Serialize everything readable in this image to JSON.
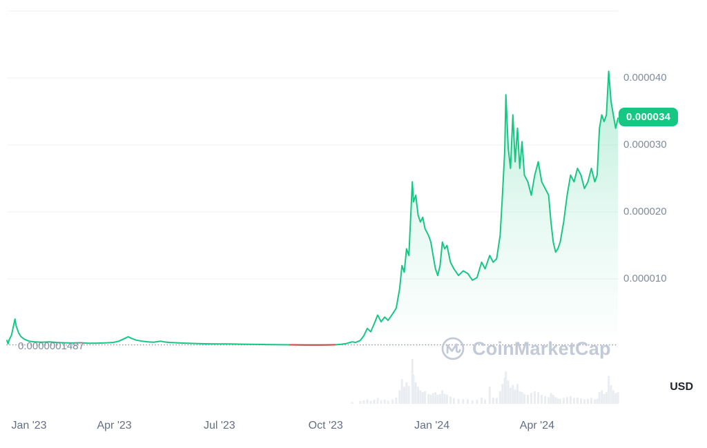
{
  "watermark": {
    "text": "CoinMarketCap"
  },
  "chart_data": {
    "type": "area",
    "title": "",
    "unit": "USD",
    "legend": "none",
    "grid": "horizontal",
    "current_price_label": "0.000034",
    "current_price_value": 3.4e-05,
    "baseline": {
      "value": 1.487e-07,
      "label": "0.0000001487"
    },
    "x_domain": [
      "2022-12-29",
      "2024-06-10"
    ],
    "y_domain": [
      0,
      5e-05
    ],
    "gridline_values": [
      5e-05,
      4e-05,
      3e-05,
      2e-05,
      1e-05
    ],
    "y_ticks": [
      {
        "value": 4e-05,
        "label": "0.000040"
      },
      {
        "value": 3e-05,
        "label": "0.000030"
      },
      {
        "value": 2e-05,
        "label": "0.000020"
      },
      {
        "value": 1e-05,
        "label": "0.000010"
      }
    ],
    "x_ticks": [
      {
        "date": "2023-01-01",
        "label": "Jan '23"
      },
      {
        "date": "2023-04-01",
        "label": "Apr '23"
      },
      {
        "date": "2023-07-01",
        "label": "Jul '23"
      },
      {
        "date": "2023-10-01",
        "label": "Oct '23"
      },
      {
        "date": "2024-01-01",
        "label": "Jan '24"
      },
      {
        "date": "2024-04-01",
        "label": "Apr '24"
      }
    ],
    "series": [
      {
        "name": "price",
        "points": [
          [
            "2022-12-29",
            8e-07
          ],
          [
            "2022-12-30",
            3e-07
          ],
          [
            "2022-12-31",
            9e-07
          ],
          [
            "2023-01-02",
            1.6e-06
          ],
          [
            "2023-01-04",
            3.2e-06
          ],
          [
            "2023-01-05",
            4e-06
          ],
          [
            "2023-01-06",
            3e-06
          ],
          [
            "2023-01-08",
            2e-06
          ],
          [
            "2023-01-10",
            1.4e-06
          ],
          [
            "2023-01-13",
            1e-06
          ],
          [
            "2023-01-17",
            7e-07
          ],
          [
            "2023-01-22",
            6e-07
          ],
          [
            "2023-01-28",
            5.5e-07
          ],
          [
            "2023-02-04",
            6e-07
          ],
          [
            "2023-02-10",
            5e-07
          ],
          [
            "2023-02-17",
            4.5e-07
          ],
          [
            "2023-02-24",
            4.2e-07
          ],
          [
            "2023-03-03",
            4.6e-07
          ],
          [
            "2023-03-10",
            3.8e-07
          ],
          [
            "2023-03-17",
            4e-07
          ],
          [
            "2023-03-24",
            4.4e-07
          ],
          [
            "2023-03-31",
            5e-07
          ],
          [
            "2023-04-05",
            7e-07
          ],
          [
            "2023-04-10",
            1.1e-06
          ],
          [
            "2023-04-13",
            1.35e-06
          ],
          [
            "2023-04-16",
            1.1e-06
          ],
          [
            "2023-04-20",
            8.5e-07
          ],
          [
            "2023-04-25",
            7e-07
          ],
          [
            "2023-04-30",
            6e-07
          ],
          [
            "2023-05-05",
            5.5e-07
          ],
          [
            "2023-05-11",
            7e-07
          ],
          [
            "2023-05-14",
            6e-07
          ],
          [
            "2023-05-19",
            5e-07
          ],
          [
            "2023-05-25",
            4.5e-07
          ],
          [
            "2023-06-01",
            4e-07
          ],
          [
            "2023-06-08",
            3.6e-07
          ],
          [
            "2023-06-15",
            3.2e-07
          ],
          [
            "2023-06-22",
            3e-07
          ],
          [
            "2023-06-29",
            2.9e-07
          ],
          [
            "2023-07-06",
            2.8e-07
          ],
          [
            "2023-07-13",
            2.7e-07
          ],
          [
            "2023-07-20",
            2.5e-07
          ],
          [
            "2023-07-27",
            2.4e-07
          ],
          [
            "2023-08-03",
            2.2e-07
          ],
          [
            "2023-08-10",
            2e-07
          ],
          [
            "2023-08-17",
            1.8e-07
          ],
          [
            "2023-08-24",
            1.7e-07
          ],
          [
            "2023-08-31",
            1.55e-07
          ],
          [
            "2023-09-07",
            1.4e-07
          ],
          [
            "2023-09-14",
            1.3e-07
          ],
          [
            "2023-09-21",
            1.25e-07
          ],
          [
            "2023-09-28",
            1.35e-07
          ],
          [
            "2023-10-04",
            1.45e-07
          ],
          [
            "2023-10-09",
            1.7e-07
          ],
          [
            "2023-10-14",
            2.2e-07
          ],
          [
            "2023-10-19",
            3.5e-07
          ],
          [
            "2023-10-24",
            6e-07
          ],
          [
            "2023-10-27",
            5e-07
          ],
          [
            "2023-10-31",
            8e-07
          ],
          [
            "2023-11-03",
            1.5e-06
          ],
          [
            "2023-11-06",
            2.6e-06
          ],
          [
            "2023-11-09",
            2.1e-06
          ],
          [
            "2023-11-12",
            3.3e-06
          ],
          [
            "2023-11-15",
            4.6e-06
          ],
          [
            "2023-11-18",
            3.6e-06
          ],
          [
            "2023-11-21",
            4.3e-06
          ],
          [
            "2023-11-24",
            3.8e-06
          ],
          [
            "2023-11-28",
            4.8e-06
          ],
          [
            "2023-12-01",
            5.6e-06
          ],
          [
            "2023-12-04",
            8.5e-06
          ],
          [
            "2023-12-06",
            1.2e-05
          ],
          [
            "2023-12-08",
            1.1e-05
          ],
          [
            "2023-12-10",
            1.45e-05
          ],
          [
            "2023-12-12",
            1.35e-05
          ],
          [
            "2023-12-15",
            2.45e-05
          ],
          [
            "2023-12-16",
            2.15e-05
          ],
          [
            "2023-12-18",
            2.25e-05
          ],
          [
            "2023-12-20",
            1.95e-05
          ],
          [
            "2023-12-22",
            1.85e-05
          ],
          [
            "2023-12-24",
            1.92e-05
          ],
          [
            "2023-12-26",
            1.75e-05
          ],
          [
            "2023-12-29",
            1.65e-05
          ],
          [
            "2023-12-31",
            1.55e-05
          ],
          [
            "2024-01-02",
            1.35e-05
          ],
          [
            "2024-01-04",
            1.15e-05
          ],
          [
            "2024-01-06",
            1.05e-05
          ],
          [
            "2024-01-08",
            1.2e-05
          ],
          [
            "2024-01-10",
            1.55e-05
          ],
          [
            "2024-01-12",
            1.45e-05
          ],
          [
            "2024-01-14",
            1.5e-05
          ],
          [
            "2024-01-17",
            1.25e-05
          ],
          [
            "2024-01-20",
            1.15e-05
          ],
          [
            "2024-01-24",
            1.05e-05
          ],
          [
            "2024-01-28",
            1.12e-05
          ],
          [
            "2024-02-01",
            1.08e-05
          ],
          [
            "2024-02-05",
            9.8e-06
          ],
          [
            "2024-02-09",
            1.02e-05
          ],
          [
            "2024-02-13",
            1.25e-05
          ],
          [
            "2024-02-16",
            1.15e-05
          ],
          [
            "2024-02-20",
            1.35e-05
          ],
          [
            "2024-02-23",
            1.25e-05
          ],
          [
            "2024-02-26",
            1.3e-05
          ],
          [
            "2024-02-29",
            1.65e-05
          ],
          [
            "2024-03-02",
            2.25e-05
          ],
          [
            "2024-03-04",
            2.9e-05
          ],
          [
            "2024-03-05",
            3.75e-05
          ],
          [
            "2024-03-07",
            2.95e-05
          ],
          [
            "2024-03-09",
            2.65e-05
          ],
          [
            "2024-03-11",
            3.45e-05
          ],
          [
            "2024-03-13",
            2.75e-05
          ],
          [
            "2024-03-15",
            3.25e-05
          ],
          [
            "2024-03-17",
            2.65e-05
          ],
          [
            "2024-03-19",
            3.05e-05
          ],
          [
            "2024-03-21",
            2.55e-05
          ],
          [
            "2024-03-24",
            2.45e-05
          ],
          [
            "2024-03-27",
            2.25e-05
          ],
          [
            "2024-03-30",
            2.55e-05
          ],
          [
            "2024-04-02",
            2.75e-05
          ],
          [
            "2024-04-05",
            2.45e-05
          ],
          [
            "2024-04-08",
            2.35e-05
          ],
          [
            "2024-04-11",
            2.25e-05
          ],
          [
            "2024-04-13",
            1.85e-05
          ],
          [
            "2024-04-15",
            1.55e-05
          ],
          [
            "2024-04-17",
            1.4e-05
          ],
          [
            "2024-04-19",
            1.45e-05
          ],
          [
            "2024-04-21",
            1.55e-05
          ],
          [
            "2024-04-24",
            1.85e-05
          ],
          [
            "2024-04-27",
            2.25e-05
          ],
          [
            "2024-04-30",
            2.55e-05
          ],
          [
            "2024-05-03",
            2.45e-05
          ],
          [
            "2024-05-06",
            2.65e-05
          ],
          [
            "2024-05-09",
            2.55e-05
          ],
          [
            "2024-05-12",
            2.35e-05
          ],
          [
            "2024-05-15",
            2.45e-05
          ],
          [
            "2024-05-18",
            2.65e-05
          ],
          [
            "2024-05-21",
            2.45e-05
          ],
          [
            "2024-05-23",
            2.55e-05
          ],
          [
            "2024-05-25",
            3.25e-05
          ],
          [
            "2024-05-27",
            3.45e-05
          ],
          [
            "2024-05-29",
            3.35e-05
          ],
          [
            "2024-05-31",
            3.45e-05
          ],
          [
            "2024-06-02",
            4.1e-05
          ],
          [
            "2024-06-04",
            3.65e-05
          ],
          [
            "2024-06-06",
            3.45e-05
          ],
          [
            "2024-06-08",
            3.25e-05
          ],
          [
            "2024-06-10",
            3.4e-05
          ]
        ]
      }
    ],
    "volume": [
      [
        "2023-10-24",
        4
      ],
      [
        "2023-10-31",
        6
      ],
      [
        "2023-11-03",
        8
      ],
      [
        "2023-11-06",
        10
      ],
      [
        "2023-11-09",
        7
      ],
      [
        "2023-11-12",
        9
      ],
      [
        "2023-11-15",
        13
      ],
      [
        "2023-11-18",
        8
      ],
      [
        "2023-11-21",
        9
      ],
      [
        "2023-11-24",
        7
      ],
      [
        "2023-11-28",
        10
      ],
      [
        "2023-12-01",
        14
      ],
      [
        "2023-12-04",
        30
      ],
      [
        "2023-12-06",
        55
      ],
      [
        "2023-12-08",
        38
      ],
      [
        "2023-12-10",
        48
      ],
      [
        "2023-12-12",
        40
      ],
      [
        "2023-12-15",
        100
      ],
      [
        "2023-12-16",
        65
      ],
      [
        "2023-12-18",
        48
      ],
      [
        "2023-12-20",
        38
      ],
      [
        "2023-12-22",
        30
      ],
      [
        "2023-12-24",
        26
      ],
      [
        "2023-12-26",
        28
      ],
      [
        "2023-12-29",
        22
      ],
      [
        "2023-12-31",
        20
      ],
      [
        "2024-01-02",
        24
      ],
      [
        "2024-01-04",
        26
      ],
      [
        "2024-01-06",
        20
      ],
      [
        "2024-01-08",
        22
      ],
      [
        "2024-01-10",
        30
      ],
      [
        "2024-01-12",
        22
      ],
      [
        "2024-01-14",
        20
      ],
      [
        "2024-01-17",
        16
      ],
      [
        "2024-01-20",
        13
      ],
      [
        "2024-01-24",
        11
      ],
      [
        "2024-01-28",
        10
      ],
      [
        "2024-02-01",
        10
      ],
      [
        "2024-02-05",
        8
      ],
      [
        "2024-02-09",
        9
      ],
      [
        "2024-02-13",
        14
      ],
      [
        "2024-02-16",
        10
      ],
      [
        "2024-02-20",
        38
      ],
      [
        "2024-02-23",
        14
      ],
      [
        "2024-02-26",
        13
      ],
      [
        "2024-02-29",
        28
      ],
      [
        "2024-03-02",
        44
      ],
      [
        "2024-03-04",
        58
      ],
      [
        "2024-03-05",
        72
      ],
      [
        "2024-03-07",
        52
      ],
      [
        "2024-03-09",
        36
      ],
      [
        "2024-03-11",
        42
      ],
      [
        "2024-03-13",
        32
      ],
      [
        "2024-03-15",
        44
      ],
      [
        "2024-03-17",
        28
      ],
      [
        "2024-03-19",
        26
      ],
      [
        "2024-03-21",
        22
      ],
      [
        "2024-03-24",
        20
      ],
      [
        "2024-03-27",
        24
      ],
      [
        "2024-03-30",
        28
      ],
      [
        "2024-04-02",
        26
      ],
      [
        "2024-04-05",
        20
      ],
      [
        "2024-04-08",
        17
      ],
      [
        "2024-04-11",
        15
      ],
      [
        "2024-04-13",
        24
      ],
      [
        "2024-04-15",
        20
      ],
      [
        "2024-04-17",
        15
      ],
      [
        "2024-04-19",
        12
      ],
      [
        "2024-04-21",
        11
      ],
      [
        "2024-04-24",
        13
      ],
      [
        "2024-04-27",
        15
      ],
      [
        "2024-04-30",
        17
      ],
      [
        "2024-05-03",
        13
      ],
      [
        "2024-05-06",
        14
      ],
      [
        "2024-05-09",
        12
      ],
      [
        "2024-05-12",
        10
      ],
      [
        "2024-05-15",
        11
      ],
      [
        "2024-05-18",
        13
      ],
      [
        "2024-05-21",
        10
      ],
      [
        "2024-05-23",
        11
      ],
      [
        "2024-05-25",
        26
      ],
      [
        "2024-05-27",
        30
      ],
      [
        "2024-05-29",
        22
      ],
      [
        "2024-05-31",
        26
      ],
      [
        "2024-06-02",
        62
      ],
      [
        "2024-06-04",
        42
      ],
      [
        "2024-06-06",
        30
      ],
      [
        "2024-06-08",
        24
      ],
      [
        "2024-06-10",
        26
      ]
    ],
    "colors": {
      "line": "#16c784",
      "down": "#ea3943",
      "fill_top": "rgba(22,199,132,0.30)",
      "fill_mid": "rgba(22,199,132,0.10)",
      "fill_bottom": "rgba(22,199,132,0)",
      "grid": "#eff2f5",
      "baseline_line": "#8c94a6",
      "axis_text": "#808a9d",
      "badge_bg": "#16c784",
      "badge_text": "#ffffff",
      "watermark": "#c3cad7",
      "volume": "#e9ecf1"
    }
  }
}
